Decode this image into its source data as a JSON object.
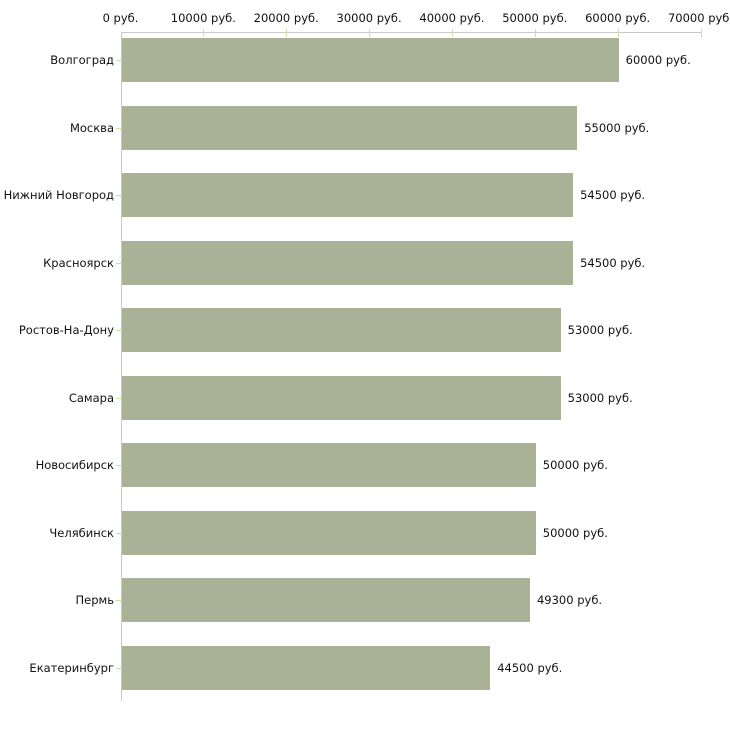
{
  "chart_data": {
    "type": "bar",
    "orientation": "horizontal",
    "title": "",
    "categories": [
      "Волгоград",
      "Москва",
      "Нижний Новгород",
      "Красноярск",
      "Ростов-На-Дону",
      "Самара",
      "Новосибирск",
      "Челябинск",
      "Пермь",
      "Екатеринбург"
    ],
    "values": [
      60000,
      55000,
      54500,
      54500,
      53000,
      53000,
      50000,
      50000,
      49300,
      44500
    ],
    "value_labels": [
      "60000 руб.",
      "55000 руб.",
      "54500 руб.",
      "54500 руб.",
      "53000 руб.",
      "53000 руб.",
      "50000 руб.",
      "50000 руб.",
      "49300 руб.",
      "44500 руб."
    ],
    "x_ticks": [
      {
        "value": 0,
        "label": "0 руб."
      },
      {
        "value": 10000,
        "label": "10000 руб."
      },
      {
        "value": 20000,
        "label": "20000 руб."
      },
      {
        "value": 30000,
        "label": "30000 руб."
      },
      {
        "value": 40000,
        "label": "40000 руб."
      },
      {
        "value": 50000,
        "label": "50000 руб."
      },
      {
        "value": 60000,
        "label": "60000 руб."
      },
      {
        "value": 70000,
        "label": "70000 руб."
      }
    ],
    "xlim": [
      0,
      70000
    ],
    "unit": "руб.",
    "grid": false,
    "legend": "none",
    "colors": {
      "bar_fill": "#a9b196",
      "axis_line": "#c9c9c9",
      "tick_mark": "#d7daad",
      "text": "#111111",
      "background": "#ffffff"
    }
  }
}
